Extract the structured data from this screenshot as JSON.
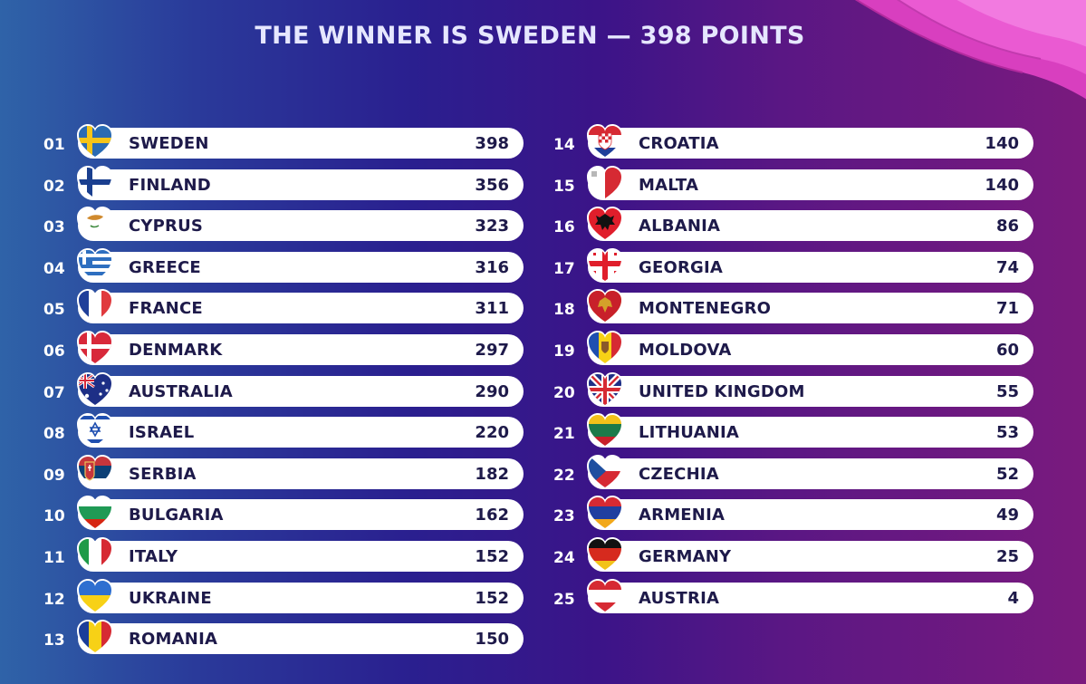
{
  "title": "THE WINNER IS SWEDEN — 398 POINTS",
  "left": [
    {
      "rank": "01",
      "country": "SWEDEN",
      "points": "398",
      "flag": "sweden-flag-icon"
    },
    {
      "rank": "02",
      "country": "FINLAND",
      "points": "356",
      "flag": "finland-flag-icon"
    },
    {
      "rank": "03",
      "country": "CYPRUS",
      "points": "323",
      "flag": "cyprus-flag-icon"
    },
    {
      "rank": "04",
      "country": "GREECE",
      "points": "316",
      "flag": "greece-flag-icon"
    },
    {
      "rank": "05",
      "country": "FRANCE",
      "points": "311",
      "flag": "france-flag-icon"
    },
    {
      "rank": "06",
      "country": "DENMARK",
      "points": "297",
      "flag": "denmark-flag-icon"
    },
    {
      "rank": "07",
      "country": "AUSTRALIA",
      "points": "290",
      "flag": "australia-flag-icon"
    },
    {
      "rank": "08",
      "country": "ISRAEL",
      "points": "220",
      "flag": "israel-flag-icon"
    },
    {
      "rank": "09",
      "country": "SERBIA",
      "points": "182",
      "flag": "serbia-flag-icon"
    },
    {
      "rank": "10",
      "country": "BULGARIA",
      "points": "162",
      "flag": "bulgaria-flag-icon"
    },
    {
      "rank": "11",
      "country": "ITALY",
      "points": "152",
      "flag": "italy-flag-icon"
    },
    {
      "rank": "12",
      "country": "UKRAINE",
      "points": "152",
      "flag": "ukraine-flag-icon"
    },
    {
      "rank": "13",
      "country": "ROMANIA",
      "points": "150",
      "flag": "romania-flag-icon"
    }
  ],
  "right": [
    {
      "rank": "14",
      "country": "CROATIA",
      "points": "140",
      "flag": "croatia-flag-icon"
    },
    {
      "rank": "15",
      "country": "MALTA",
      "points": "140",
      "flag": "malta-flag-icon"
    },
    {
      "rank": "16",
      "country": "ALBANIA",
      "points": "86",
      "flag": "albania-flag-icon"
    },
    {
      "rank": "17",
      "country": "GEORGIA",
      "points": "74",
      "flag": "georgia-flag-icon"
    },
    {
      "rank": "18",
      "country": "MONTENEGRO",
      "points": "71",
      "flag": "montenegro-flag-icon"
    },
    {
      "rank": "19",
      "country": "MOLDOVA",
      "points": "60",
      "flag": "moldova-flag-icon"
    },
    {
      "rank": "20",
      "country": "UNITED KINGDOM",
      "points": "55",
      "flag": "uk-flag-icon"
    },
    {
      "rank": "21",
      "country": "LITHUANIA",
      "points": "53",
      "flag": "lithuania-flag-icon"
    },
    {
      "rank": "22",
      "country": "CZECHIA",
      "points": "52",
      "flag": "czechia-flag-icon"
    },
    {
      "rank": "23",
      "country": "ARMENIA",
      "points": "49",
      "flag": "armenia-flag-icon"
    },
    {
      "rank": "24",
      "country": "GERMANY",
      "points": "25",
      "flag": "germany-flag-icon"
    },
    {
      "rank": "25",
      "country": "AUSTRIA",
      "points": "4",
      "flag": "austria-flag-icon"
    }
  ],
  "colors": {
    "pill": "#ffffff",
    "text_dark": "#1e1a4a",
    "rank_text": "#ffffff",
    "title_text": "#e6e7ff",
    "accent_pink": "#e94cc7"
  }
}
